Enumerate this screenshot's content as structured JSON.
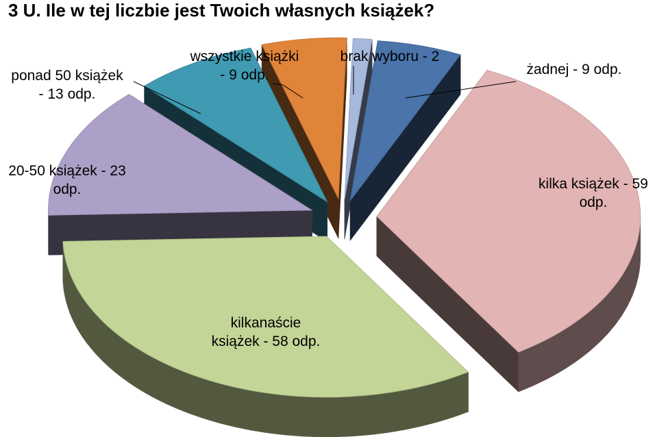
{
  "chart_data": {
    "type": "pie",
    "style": "3d-exploded",
    "title": "3 U. Ile w tej liczbie jest Twoich własnych książek?",
    "legend": "none",
    "slices": [
      {
        "name": "żadnej",
        "value": 9,
        "color": "#4a74aa",
        "label": [
          "żadnej - 9 odp."
        ]
      },
      {
        "name": "kilka książek",
        "value": 59,
        "color": "#e3b4b4",
        "label": [
          "kilka książek - 59",
          "odp."
        ]
      },
      {
        "name": "kilkanaście książek",
        "value": 58,
        "color": "#c3d597",
        "label": [
          "kilkanaście",
          "książek - 58 odp."
        ]
      },
      {
        "name": "20-50 książek",
        "value": 23,
        "color": "#ada0c8",
        "label": [
          "20-50 książek - 23",
          "odp."
        ]
      },
      {
        "name": "ponad 50 książek",
        "value": 13,
        "color": "#3f9ab2",
        "label": [
          "ponad 50 książek",
          "- 13 odp."
        ]
      },
      {
        "name": "wszystkie książki",
        "value": 9,
        "color": "#e0843a",
        "label": [
          "wszystkie książki",
          "- 9 odp."
        ]
      },
      {
        "name": "brak wyboru",
        "value": 2,
        "color": "#a6b8dc",
        "label": [
          "brak wyboru - 2"
        ]
      }
    ]
  }
}
